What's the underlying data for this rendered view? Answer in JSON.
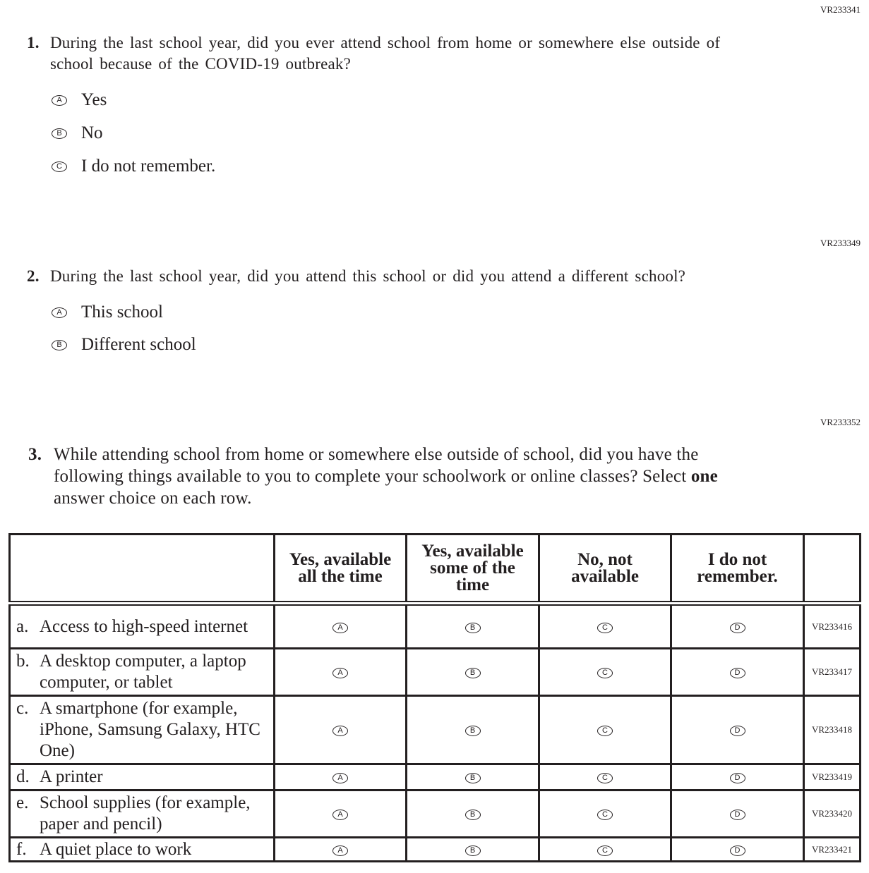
{
  "questions": [
    {
      "id": "VR233341",
      "number": "1.",
      "text": "During the last school year, did you ever attend school from home or somewhere else outside of school because of the COVID-19 outbreak?",
      "options": [
        {
          "letter": "A",
          "label": "Yes"
        },
        {
          "letter": "B",
          "label": "No"
        },
        {
          "letter": "C",
          "label": "I do not remember."
        }
      ]
    },
    {
      "id": "VR233349",
      "number": "2.",
      "text": "During the last school year, did you attend this school or did you attend a different school?",
      "options": [
        {
          "letter": "A",
          "label": "This school"
        },
        {
          "letter": "B",
          "label": "Different school"
        }
      ]
    },
    {
      "id": "VR233352",
      "number": "3.",
      "text_before": "While attending school from home or somewhere else outside of school, did you have the following things available to you to complete your schoolwork or online classes? Select ",
      "text_bold": "one",
      "text_after": " answer choice on each row."
    }
  ],
  "grid": {
    "columns": [
      "Yes, available all the time",
      "Yes, available some of the time",
      "No, not available",
      "I do not remember."
    ],
    "letters": [
      "A",
      "B",
      "C",
      "D"
    ],
    "rows": [
      {
        "letter": "a.",
        "label": "Access to high-speed internet",
        "id": "VR233416"
      },
      {
        "letter": "b.",
        "label": "A desktop computer, a laptop computer, or tablet",
        "id": "VR233417"
      },
      {
        "letter": "c.",
        "label": "A smartphone (for example, iPhone, Samsung Galaxy, HTC One)",
        "id": "VR233418"
      },
      {
        "letter": "d.",
        "label": "A printer",
        "id": "VR233419"
      },
      {
        "letter": "e.",
        "label": "School supplies (for example, paper and pencil)",
        "id": "VR233420"
      },
      {
        "letter": "f.",
        "label": "A quiet place to work",
        "id": "VR233421"
      }
    ]
  }
}
